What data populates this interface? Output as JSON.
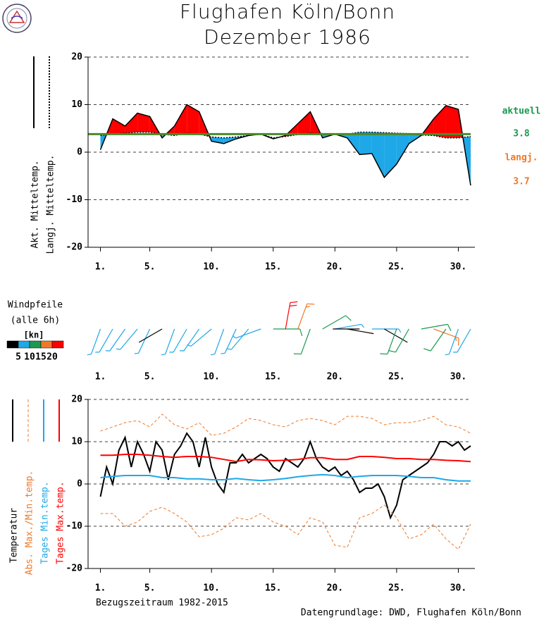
{
  "header": {
    "title": "Flughafen Köln/Bonn",
    "subtitle": "Dezember 1986"
  },
  "footer": "Datengrundlage: DWD, Flughafen Köln/Bonn",
  "chart_data": [
    {
      "type": "line",
      "x": [
        1,
        2,
        3,
        4,
        5,
        6,
        7,
        8,
        9,
        10,
        11,
        12,
        13,
        14,
        15,
        16,
        17,
        18,
        19,
        20,
        21,
        22,
        23,
        24,
        25,
        26,
        27,
        28,
        29,
        30,
        31
      ],
      "xlim": [
        0,
        31
      ],
      "xticks": [
        {
          "value": 1,
          "label": "1."
        },
        {
          "value": 5,
          "label": "5."
        },
        {
          "value": 10,
          "label": "10."
        },
        {
          "value": 15,
          "label": "15."
        },
        {
          "value": 20,
          "label": "20."
        },
        {
          "value": 25,
          "label": "25."
        },
        {
          "value": 30,
          "label": "30."
        }
      ],
      "ylim": [
        -20,
        20
      ],
      "yticks": [
        -20,
        -10,
        0,
        10,
        20
      ],
      "grid": true,
      "fill_above": "#ff0000",
      "fill_below": "#1ea8e8",
      "series": [
        {
          "name": "Akt. Mitteltemp.",
          "color": "#000000",
          "dash": "solid",
          "values": [
            0.5,
            7,
            5.5,
            8.2,
            7.5,
            3,
            5.5,
            10,
            8.5,
            2.3,
            1.8,
            2.8,
            3.5,
            3.8,
            2.8,
            3.5,
            6,
            8.5,
            3,
            3.8,
            3,
            -0.5,
            -0.3,
            -5.3,
            -2.5,
            1.8,
            3.5,
            7,
            9.8,
            9,
            -7
          ]
        },
        {
          "name": "Langj. Mitteltemp.",
          "color": "#000000",
          "dash": "dotted",
          "values": [
            3.5,
            3.8,
            4.0,
            4.2,
            4.2,
            3.8,
            3.5,
            4.0,
            3.8,
            3.2,
            3.0,
            3.2,
            3.5,
            3.8,
            3.0,
            3.3,
            3.7,
            4.0,
            3.9,
            3.8,
            3.8,
            4.2,
            4.2,
            4.1,
            4.0,
            3.9,
            3.6,
            3.5,
            3.0,
            3.0,
            3.3
          ]
        }
      ],
      "monthly_mean": {
        "label": "aktuell",
        "value": 3.8,
        "color": "#1a9a50",
        "line_color": "#4a8a2a"
      },
      "longterm_mean": {
        "label": "langj.",
        "value": 3.7,
        "color": "#f07828"
      }
    },
    {
      "type": "barbs",
      "title": "Windpfeile",
      "subtitle": "(alle 6h)",
      "unit": "[kn]",
      "x": [
        1,
        2,
        3,
        4,
        5,
        6,
        7,
        8,
        9,
        10,
        11,
        12,
        13,
        14,
        15,
        16,
        17,
        18,
        19,
        20,
        21,
        22,
        23,
        24,
        25,
        26,
        27,
        28,
        29,
        30,
        31
      ],
      "xlim": [
        0,
        31
      ],
      "xticks": [
        {
          "value": 1,
          "label": "1."
        },
        {
          "value": 5,
          "label": "5."
        },
        {
          "value": 10,
          "label": "10."
        },
        {
          "value": 15,
          "label": "15."
        },
        {
          "value": 20,
          "label": "20."
        },
        {
          "value": 25,
          "label": "25."
        },
        {
          "value": 30,
          "label": "30."
        }
      ],
      "speed": [
        6,
        8,
        9,
        7,
        8,
        4,
        6,
        9,
        8,
        5,
        7,
        9,
        6,
        5,
        12,
        22,
        18,
        14,
        10,
        9,
        4,
        3,
        5,
        4,
        12,
        14,
        13,
        16,
        12,
        9,
        8
      ],
      "direction": [
        200,
        210,
        215,
        220,
        205,
        240,
        200,
        210,
        215,
        230,
        200,
        205,
        220,
        250,
        90,
        10,
        20,
        200,
        60,
        80,
        100,
        270,
        90,
        120,
        200,
        210,
        80,
        110,
        215,
        200,
        210
      ],
      "colorbar": {
        "bounds": [
          5,
          10,
          15,
          20
        ],
        "colors": [
          "#000000",
          "#1ea8e8",
          "#1a9a50",
          "#f07828",
          "#ff0000"
        ]
      }
    },
    {
      "type": "line",
      "x": [
        1,
        2,
        3,
        4,
        5,
        6,
        7,
        8,
        9,
        10,
        11,
        12,
        13,
        14,
        15,
        16,
        17,
        18,
        19,
        20,
        21,
        22,
        23,
        24,
        25,
        26,
        27,
        28,
        29,
        30,
        31
      ],
      "xlim": [
        0,
        31
      ],
      "xticks": [
        {
          "value": 1,
          "label": "1."
        },
        {
          "value": 5,
          "label": "5."
        },
        {
          "value": 10,
          "label": "10."
        },
        {
          "value": 15,
          "label": "15."
        },
        {
          "value": 20,
          "label": "20."
        },
        {
          "value": 25,
          "label": "25."
        },
        {
          "value": 30,
          "label": "30."
        }
      ],
      "ylim": [
        -20,
        20
      ],
      "yticks": [
        -20,
        -10,
        0,
        10,
        20
      ],
      "grid": true,
      "note": "Bezugszeitraum 1982-2015",
      "series": [
        {
          "name": "Temperatur",
          "color": "#000000",
          "dash": "solid",
          "width": 2,
          "x": [
            1,
            1.5,
            2,
            2.5,
            3,
            3.5,
            4,
            4.5,
            5,
            5.5,
            6,
            6.5,
            7,
            7.5,
            8,
            8.5,
            9,
            9.5,
            10,
            10.5,
            11,
            11.5,
            12,
            12.5,
            13,
            13.5,
            14,
            14.5,
            15,
            15.5,
            16,
            16.5,
            17,
            17.5,
            18,
            18.5,
            19,
            19.5,
            20,
            20.5,
            21,
            21.5,
            22,
            22.5,
            23,
            23.5,
            24,
            24.5,
            25,
            25.5,
            26,
            26.5,
            27,
            27.5,
            28,
            28.5,
            29,
            29.5,
            30,
            30.5,
            31
          ],
          "values": [
            -3,
            4,
            0,
            8,
            11,
            4,
            10,
            7,
            3,
            10,
            8,
            1,
            7,
            9,
            12,
            10,
            4,
            11,
            4,
            0,
            -2,
            5,
            5,
            7,
            5,
            6,
            7,
            6,
            4,
            3,
            6,
            5,
            4,
            6,
            10,
            6,
            4,
            3,
            4,
            2,
            3,
            1,
            -2,
            -1,
            -1,
            0,
            -3,
            -8,
            -5,
            1,
            2,
            3,
            4,
            5,
            7,
            10,
            10,
            9,
            10,
            8,
            9
          ]
        },
        {
          "name": "Abs. Max./Min.temp.",
          "color": "#f07828",
          "dash": "dashed",
          "width": 1,
          "values": [
            12.5,
            13.5,
            14.5,
            15,
            13.5,
            16.5,
            14,
            13,
            14.5,
            11.5,
            12,
            13.5,
            15.5,
            15,
            14,
            13.5,
            15,
            15.5,
            15,
            14,
            16,
            16,
            15.5,
            14,
            14.5,
            14.5,
            15,
            16,
            14,
            13.5,
            12
          ]
        },
        {
          "color": "#f07828",
          "dash": "dashed",
          "width": 1,
          "values": [
            -7,
            -7,
            -10,
            -9,
            -6.5,
            -5.5,
            -7,
            -9,
            -12.5,
            -12,
            -10.5,
            -8,
            -8.5,
            -7,
            -9,
            -10,
            -12,
            -8,
            -9,
            -14.5,
            -15,
            -8,
            -7,
            -5,
            -8,
            -13,
            -12,
            -9.5,
            -13,
            -15.5,
            -9.5
          ]
        },
        {
          "name": "Tages Min.temp.",
          "color": "#1ea8e8",
          "dash": "solid",
          "width": 2,
          "values": [
            1.5,
            1.8,
            2,
            2,
            2,
            1.5,
            1.5,
            1.2,
            1.2,
            1,
            1,
            1.3,
            1,
            0.8,
            1,
            1.3,
            1.7,
            2,
            2.2,
            2,
            1.5,
            1.8,
            2,
            2,
            2,
            1.8,
            1.5,
            1.5,
            1,
            0.7,
            0.7
          ]
        },
        {
          "name": "Tages Max.temp.",
          "color": "#ff0000",
          "dash": "solid",
          "width": 2,
          "values": [
            6.8,
            6.8,
            7,
            7,
            6.8,
            6.5,
            6.3,
            6.5,
            6.5,
            6.3,
            5.8,
            5.3,
            5.8,
            5.7,
            5.5,
            5.6,
            5.8,
            6.2,
            6.2,
            5.8,
            5.8,
            6.5,
            6.5,
            6.3,
            6.0,
            6.0,
            5.8,
            5.8,
            5.6,
            5.5,
            5.3
          ]
        }
      ]
    }
  ]
}
